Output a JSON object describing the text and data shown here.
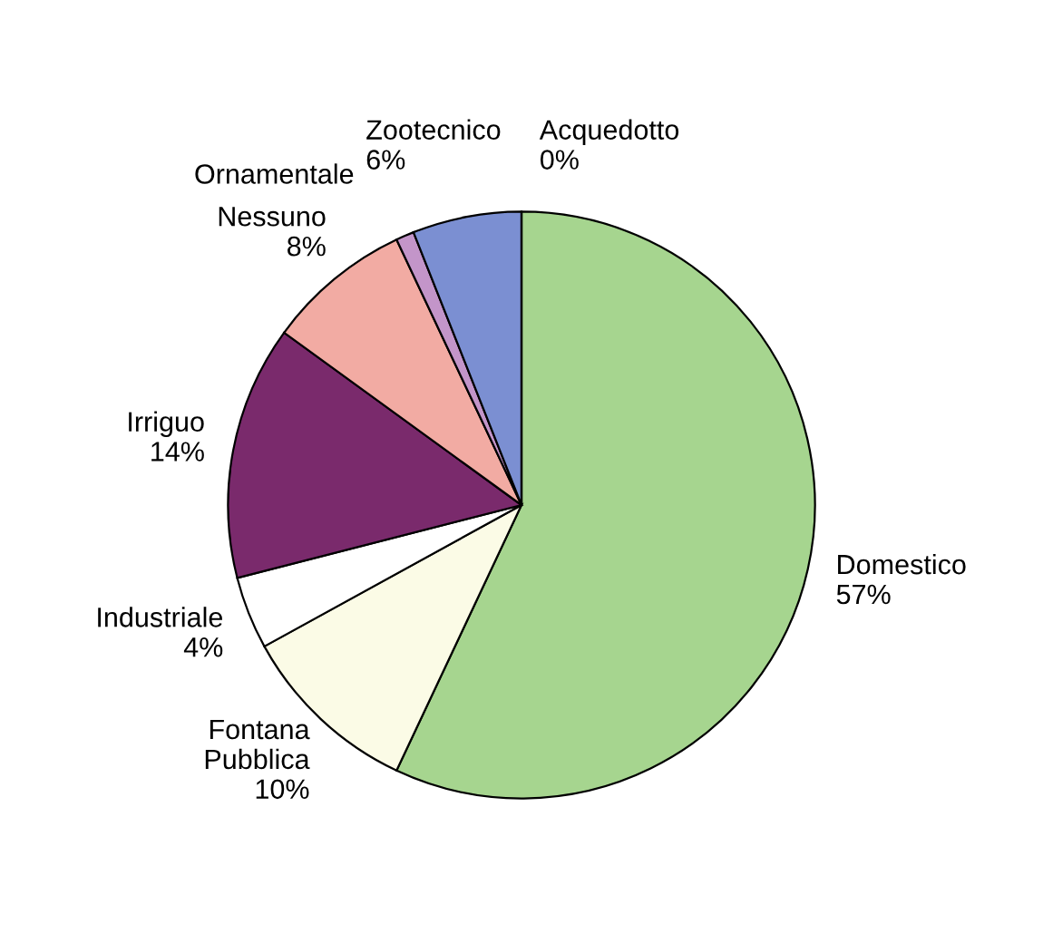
{
  "chart_data": {
    "type": "pie",
    "categories": [
      "Domestico",
      "Fontana\nPubblica",
      "Industriale",
      "Irriguo",
      "Nessuno",
      "Ornamentale",
      "Zootecnico",
      "Acquedotto"
    ],
    "values": [
      57,
      10,
      4,
      14,
      8,
      1,
      6,
      0
    ],
    "value_labels": [
      "57%",
      "10%",
      "4%",
      "14%",
      "8%",
      null,
      "6%",
      "0%"
    ],
    "colors": [
      "#a6d58f",
      "#fbfbe6",
      "#ffffff",
      "#7a2a6c",
      "#f2aba3",
      "#c395c9",
      "#7b8fd2",
      "#ffffff"
    ]
  }
}
